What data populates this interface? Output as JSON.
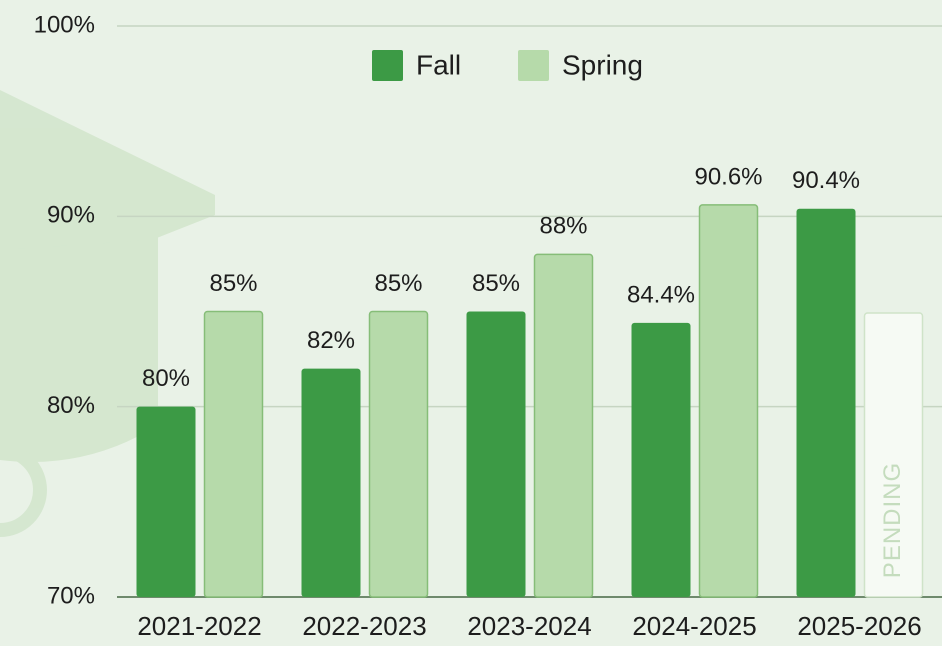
{
  "chart_data": {
    "type": "bar",
    "categories": [
      "2021-2022",
      "2022-2023",
      "2023-2024",
      "2024-2025",
      "2025-2026"
    ],
    "series": [
      {
        "name": "Fall",
        "color": "#3c9a45",
        "values": [
          80,
          82,
          85,
          84.4,
          90.4
        ],
        "value_labels": [
          "80%",
          "82%",
          "85%",
          "84.4%",
          "90.4%"
        ]
      },
      {
        "name": "Spring",
        "color": "#b6daaa",
        "values": [
          85,
          85,
          88,
          90.6,
          null
        ],
        "value_labels": [
          "85%",
          "85%",
          "88%",
          "90.6%",
          null
        ]
      }
    ],
    "ylim": [
      70,
      100
    ],
    "yticks": [
      {
        "value": 70,
        "label": "70%"
      },
      {
        "value": 80,
        "label": "80%"
      },
      {
        "value": 90,
        "label": "90%"
      },
      {
        "value": 100,
        "label": "100%"
      }
    ],
    "grid": true,
    "legend": "top",
    "annotation": "PENDING"
  }
}
